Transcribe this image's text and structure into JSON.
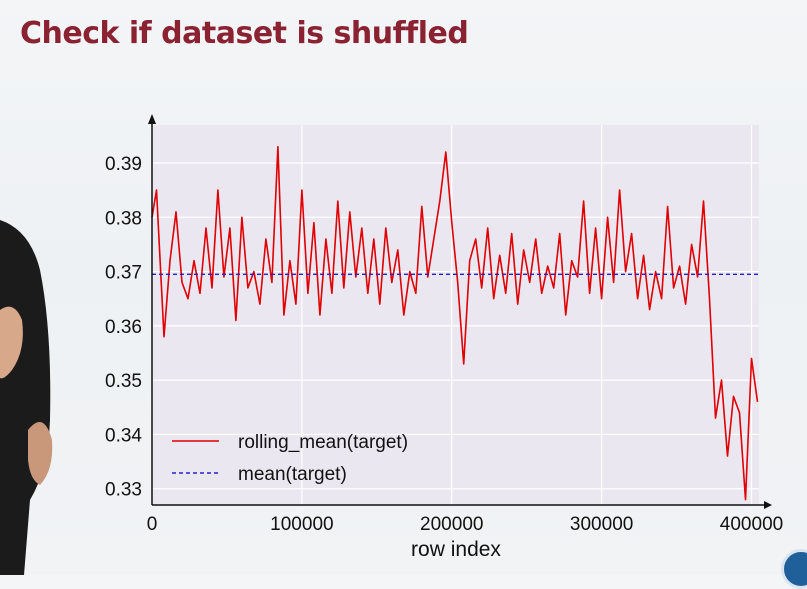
{
  "slide": {
    "title": "Check if dataset is shuffled"
  },
  "chart_data": {
    "type": "line",
    "xlabel": "row index",
    "ylabel": "",
    "xlim": [
      0,
      405000
    ],
    "ylim": [
      0.327,
      0.397
    ],
    "x_ticks": [
      0,
      100000,
      200000,
      300000,
      400000
    ],
    "y_ticks": [
      0.33,
      0.34,
      0.35,
      0.36,
      0.37,
      0.38,
      0.39
    ],
    "x_tick_labels": [
      "0",
      "100000",
      "200000",
      "300000",
      "400000"
    ],
    "y_tick_labels": [
      "0.33",
      "0.34",
      "0.35",
      "0.36",
      "0.37",
      "0.38",
      "0.39"
    ],
    "grid": true,
    "legend_position": "bottom-left",
    "series": [
      {
        "name": "rolling_mean(target)",
        "color": "#e00000",
        "style": "solid",
        "x": [
          0,
          3000,
          8000,
          12000,
          16000,
          20000,
          24000,
          28000,
          32000,
          36000,
          40000,
          44000,
          48000,
          52000,
          56000,
          60000,
          64000,
          68000,
          72000,
          76000,
          80000,
          84000,
          88000,
          92000,
          96000,
          100000,
          104000,
          108000,
          112000,
          116000,
          120000,
          124000,
          128000,
          132000,
          136000,
          140000,
          144000,
          148000,
          152000,
          156000,
          160000,
          164000,
          168000,
          172000,
          176000,
          180000,
          184000,
          188000,
          192000,
          196000,
          200000,
          204000,
          208000,
          212000,
          216000,
          220000,
          224000,
          228000,
          232000,
          236000,
          240000,
          244000,
          248000,
          252000,
          256000,
          260000,
          264000,
          268000,
          272000,
          276000,
          280000,
          284000,
          288000,
          292000,
          296000,
          300000,
          304000,
          308000,
          312000,
          316000,
          320000,
          324000,
          328000,
          332000,
          336000,
          340000,
          344000,
          348000,
          352000,
          356000,
          360000,
          364000,
          368000,
          372000,
          376000,
          380000,
          384000,
          388000,
          392000,
          396000,
          400000,
          404000
        ],
        "y": [
          0.38,
          0.385,
          0.358,
          0.372,
          0.381,
          0.368,
          0.365,
          0.372,
          0.366,
          0.378,
          0.367,
          0.385,
          0.369,
          0.378,
          0.361,
          0.38,
          0.367,
          0.37,
          0.364,
          0.376,
          0.368,
          0.393,
          0.362,
          0.372,
          0.364,
          0.385,
          0.366,
          0.379,
          0.362,
          0.376,
          0.366,
          0.383,
          0.367,
          0.381,
          0.369,
          0.378,
          0.366,
          0.376,
          0.364,
          0.378,
          0.368,
          0.374,
          0.362,
          0.37,
          0.366,
          0.382,
          0.369,
          0.376,
          0.383,
          0.392,
          0.379,
          0.368,
          0.353,
          0.372,
          0.376,
          0.367,
          0.378,
          0.365,
          0.373,
          0.366,
          0.377,
          0.364,
          0.374,
          0.368,
          0.376,
          0.366,
          0.371,
          0.367,
          0.377,
          0.362,
          0.372,
          0.369,
          0.383,
          0.366,
          0.378,
          0.365,
          0.38,
          0.368,
          0.385,
          0.37,
          0.377,
          0.365,
          0.373,
          0.363,
          0.37,
          0.365,
          0.382,
          0.367,
          0.371,
          0.364,
          0.375,
          0.369,
          0.383,
          0.365,
          0.343,
          0.35,
          0.336,
          0.347,
          0.344,
          0.328,
          0.354,
          0.346
        ],
        "display_name": "rolling_mean(target)"
      },
      {
        "name": "mean(target)",
        "color": "#2222cc",
        "style": "dashed",
        "x": [
          0,
          405000
        ],
        "y": [
          0.3695,
          0.3695
        ],
        "display_name": "mean(target)"
      }
    ]
  }
}
